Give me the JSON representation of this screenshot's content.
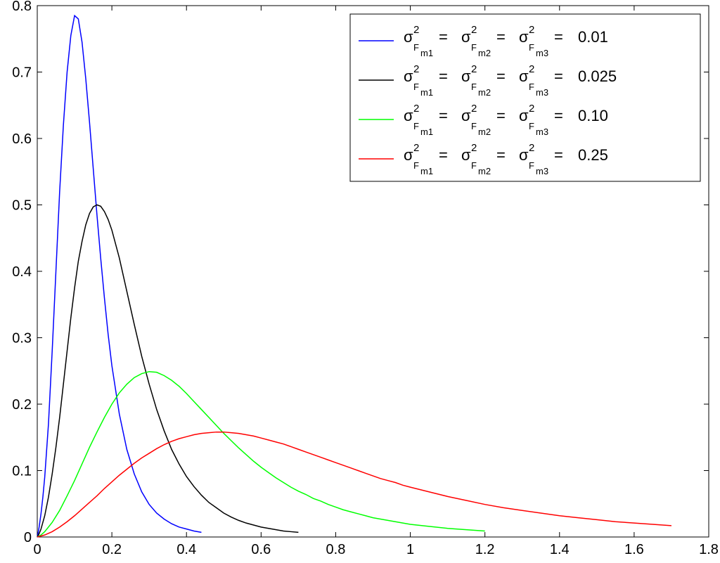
{
  "chart": {
    "type": "line",
    "background_color": "#ffffff",
    "plot_area_color": "#ffffff",
    "axis_color": "#000000",
    "font_family": "Arial",
    "tick_label_fontsize": 20,
    "xlim": [
      0,
      1.8
    ],
    "ylim": [
      0,
      0.8
    ],
    "xticks": [
      0,
      0.2,
      0.4,
      0.6,
      0.8,
      1,
      1.2,
      1.4,
      1.6,
      1.8
    ],
    "xtick_labels": [
      "0",
      "0.2",
      "0.4",
      "0.6",
      "0.8",
      "1",
      "1.2",
      "1.4",
      "1.6",
      "1.8"
    ],
    "yticks": [
      0,
      0.1,
      0.2,
      0.3,
      0.4,
      0.5,
      0.6,
      0.7,
      0.8
    ],
    "ytick_labels": [
      "0",
      "0.1",
      "0.2",
      "0.3",
      "0.4",
      "0.5",
      "0.6",
      "0.7",
      "0.8"
    ],
    "legend": {
      "position": "upper-right",
      "border_color": "#000000",
      "background_color": "#ffffff",
      "entries": [
        {
          "color": "#0000ff",
          "value": "0.01"
        },
        {
          "color": "#000000",
          "value": "0.025"
        },
        {
          "color": "#00ff00",
          "value": "0.10"
        },
        {
          "color": "#ff0000",
          "value": "0.25"
        }
      ]
    },
    "series": [
      {
        "name": "sigma2=0.01",
        "color": "#0000ff",
        "linewidth": 1.5,
        "data": [
          [
            0.0,
            0.0
          ],
          [
            0.002,
            0.005
          ],
          [
            0.005,
            0.015
          ],
          [
            0.01,
            0.035
          ],
          [
            0.015,
            0.06
          ],
          [
            0.02,
            0.09
          ],
          [
            0.03,
            0.17
          ],
          [
            0.04,
            0.28
          ],
          [
            0.05,
            0.4
          ],
          [
            0.06,
            0.52
          ],
          [
            0.07,
            0.62
          ],
          [
            0.08,
            0.7
          ],
          [
            0.09,
            0.755
          ],
          [
            0.1,
            0.785
          ],
          [
            0.11,
            0.78
          ],
          [
            0.12,
            0.745
          ],
          [
            0.13,
            0.69
          ],
          [
            0.14,
            0.625
          ],
          [
            0.15,
            0.555
          ],
          [
            0.16,
            0.485
          ],
          [
            0.17,
            0.42
          ],
          [
            0.18,
            0.36
          ],
          [
            0.19,
            0.305
          ],
          [
            0.2,
            0.258
          ],
          [
            0.22,
            0.185
          ],
          [
            0.24,
            0.132
          ],
          [
            0.26,
            0.095
          ],
          [
            0.28,
            0.068
          ],
          [
            0.3,
            0.049
          ],
          [
            0.32,
            0.036
          ],
          [
            0.34,
            0.027
          ],
          [
            0.36,
            0.02
          ],
          [
            0.38,
            0.015
          ],
          [
            0.4,
            0.012
          ],
          [
            0.42,
            0.009
          ],
          [
            0.44,
            0.007
          ]
        ]
      },
      {
        "name": "sigma2=0.025",
        "color": "#000000",
        "linewidth": 1.5,
        "data": [
          [
            0.0,
            0.0
          ],
          [
            0.005,
            0.005
          ],
          [
            0.01,
            0.012
          ],
          [
            0.02,
            0.032
          ],
          [
            0.03,
            0.06
          ],
          [
            0.04,
            0.095
          ],
          [
            0.05,
            0.135
          ],
          [
            0.06,
            0.18
          ],
          [
            0.07,
            0.23
          ],
          [
            0.08,
            0.28
          ],
          [
            0.09,
            0.33
          ],
          [
            0.1,
            0.375
          ],
          [
            0.11,
            0.415
          ],
          [
            0.12,
            0.445
          ],
          [
            0.13,
            0.47
          ],
          [
            0.14,
            0.487
          ],
          [
            0.15,
            0.497
          ],
          [
            0.16,
            0.5
          ],
          [
            0.17,
            0.498
          ],
          [
            0.18,
            0.49
          ],
          [
            0.19,
            0.478
          ],
          [
            0.2,
            0.462
          ],
          [
            0.22,
            0.42
          ],
          [
            0.24,
            0.37
          ],
          [
            0.26,
            0.32
          ],
          [
            0.28,
            0.272
          ],
          [
            0.3,
            0.23
          ],
          [
            0.32,
            0.192
          ],
          [
            0.34,
            0.16
          ],
          [
            0.36,
            0.132
          ],
          [
            0.38,
            0.11
          ],
          [
            0.4,
            0.091
          ],
          [
            0.42,
            0.076
          ],
          [
            0.44,
            0.063
          ],
          [
            0.46,
            0.052
          ],
          [
            0.48,
            0.044
          ],
          [
            0.5,
            0.036
          ],
          [
            0.52,
            0.03
          ],
          [
            0.54,
            0.025
          ],
          [
            0.56,
            0.021
          ],
          [
            0.58,
            0.018
          ],
          [
            0.6,
            0.015
          ],
          [
            0.62,
            0.013
          ],
          [
            0.64,
            0.011
          ],
          [
            0.66,
            0.009
          ],
          [
            0.68,
            0.008
          ],
          [
            0.7,
            0.007
          ]
        ]
      },
      {
        "name": "sigma2=0.10",
        "color": "#00ff00",
        "linewidth": 1.5,
        "data": [
          [
            0.0,
            0.0
          ],
          [
            0.01,
            0.003
          ],
          [
            0.02,
            0.008
          ],
          [
            0.04,
            0.022
          ],
          [
            0.06,
            0.04
          ],
          [
            0.08,
            0.062
          ],
          [
            0.1,
            0.085
          ],
          [
            0.12,
            0.11
          ],
          [
            0.14,
            0.135
          ],
          [
            0.16,
            0.158
          ],
          [
            0.18,
            0.18
          ],
          [
            0.2,
            0.2
          ],
          [
            0.22,
            0.217
          ],
          [
            0.24,
            0.23
          ],
          [
            0.26,
            0.24
          ],
          [
            0.28,
            0.246
          ],
          [
            0.3,
            0.249
          ],
          [
            0.32,
            0.248
          ],
          [
            0.34,
            0.243
          ],
          [
            0.36,
            0.236
          ],
          [
            0.38,
            0.227
          ],
          [
            0.4,
            0.216
          ],
          [
            0.42,
            0.204
          ],
          [
            0.44,
            0.192
          ],
          [
            0.46,
            0.18
          ],
          [
            0.48,
            0.168
          ],
          [
            0.5,
            0.156
          ],
          [
            0.52,
            0.145
          ],
          [
            0.54,
            0.134
          ],
          [
            0.56,
            0.124
          ],
          [
            0.58,
            0.114
          ],
          [
            0.6,
            0.105
          ],
          [
            0.62,
            0.097
          ],
          [
            0.64,
            0.089
          ],
          [
            0.66,
            0.082
          ],
          [
            0.68,
            0.075
          ],
          [
            0.7,
            0.069
          ],
          [
            0.72,
            0.064
          ],
          [
            0.74,
            0.058
          ],
          [
            0.76,
            0.054
          ],
          [
            0.78,
            0.049
          ],
          [
            0.8,
            0.045
          ],
          [
            0.82,
            0.041
          ],
          [
            0.84,
            0.038
          ],
          [
            0.86,
            0.035
          ],
          [
            0.88,
            0.032
          ],
          [
            0.9,
            0.029
          ],
          [
            0.92,
            0.027
          ],
          [
            0.94,
            0.025
          ],
          [
            0.96,
            0.023
          ],
          [
            0.98,
            0.021
          ],
          [
            1.0,
            0.019
          ],
          [
            1.05,
            0.016
          ],
          [
            1.1,
            0.013
          ],
          [
            1.15,
            0.011
          ],
          [
            1.2,
            0.009
          ]
        ]
      },
      {
        "name": "sigma2=0.25",
        "color": "#ff0000",
        "linewidth": 1.5,
        "data": [
          [
            0.0,
            0.0
          ],
          [
            0.02,
            0.003
          ],
          [
            0.04,
            0.008
          ],
          [
            0.06,
            0.015
          ],
          [
            0.08,
            0.023
          ],
          [
            0.1,
            0.032
          ],
          [
            0.12,
            0.042
          ],
          [
            0.14,
            0.052
          ],
          [
            0.16,
            0.062
          ],
          [
            0.18,
            0.073
          ],
          [
            0.2,
            0.083
          ],
          [
            0.22,
            0.093
          ],
          [
            0.24,
            0.102
          ],
          [
            0.26,
            0.111
          ],
          [
            0.28,
            0.119
          ],
          [
            0.3,
            0.126
          ],
          [
            0.32,
            0.133
          ],
          [
            0.34,
            0.139
          ],
          [
            0.36,
            0.144
          ],
          [
            0.38,
            0.148
          ],
          [
            0.4,
            0.151
          ],
          [
            0.42,
            0.154
          ],
          [
            0.44,
            0.156
          ],
          [
            0.46,
            0.157
          ],
          [
            0.48,
            0.158
          ],
          [
            0.5,
            0.158
          ],
          [
            0.52,
            0.157
          ],
          [
            0.54,
            0.156
          ],
          [
            0.56,
            0.154
          ],
          [
            0.58,
            0.152
          ],
          [
            0.6,
            0.149
          ],
          [
            0.62,
            0.146
          ],
          [
            0.64,
            0.143
          ],
          [
            0.66,
            0.14
          ],
          [
            0.68,
            0.136
          ],
          [
            0.7,
            0.132
          ],
          [
            0.72,
            0.128
          ],
          [
            0.74,
            0.124
          ],
          [
            0.76,
            0.12
          ],
          [
            0.78,
            0.116
          ],
          [
            0.8,
            0.112
          ],
          [
            0.82,
            0.108
          ],
          [
            0.84,
            0.104
          ],
          [
            0.86,
            0.1
          ],
          [
            0.88,
            0.096
          ],
          [
            0.9,
            0.092
          ],
          [
            0.92,
            0.088
          ],
          [
            0.94,
            0.085
          ],
          [
            0.96,
            0.082
          ],
          [
            0.98,
            0.078
          ],
          [
            1.0,
            0.075
          ],
          [
            1.05,
            0.068
          ],
          [
            1.1,
            0.061
          ],
          [
            1.15,
            0.055
          ],
          [
            1.2,
            0.049
          ],
          [
            1.25,
            0.044
          ],
          [
            1.3,
            0.04
          ],
          [
            1.35,
            0.036
          ],
          [
            1.4,
            0.032
          ],
          [
            1.45,
            0.029
          ],
          [
            1.5,
            0.026
          ],
          [
            1.55,
            0.023
          ],
          [
            1.6,
            0.021
          ],
          [
            1.65,
            0.019
          ],
          [
            1.7,
            0.017
          ]
        ]
      }
    ]
  },
  "legend_labels": {
    "sigma": "σ",
    "F": "F",
    "m1": "m1",
    "m2": "m2",
    "m3": "m3",
    "eq": " = "
  }
}
